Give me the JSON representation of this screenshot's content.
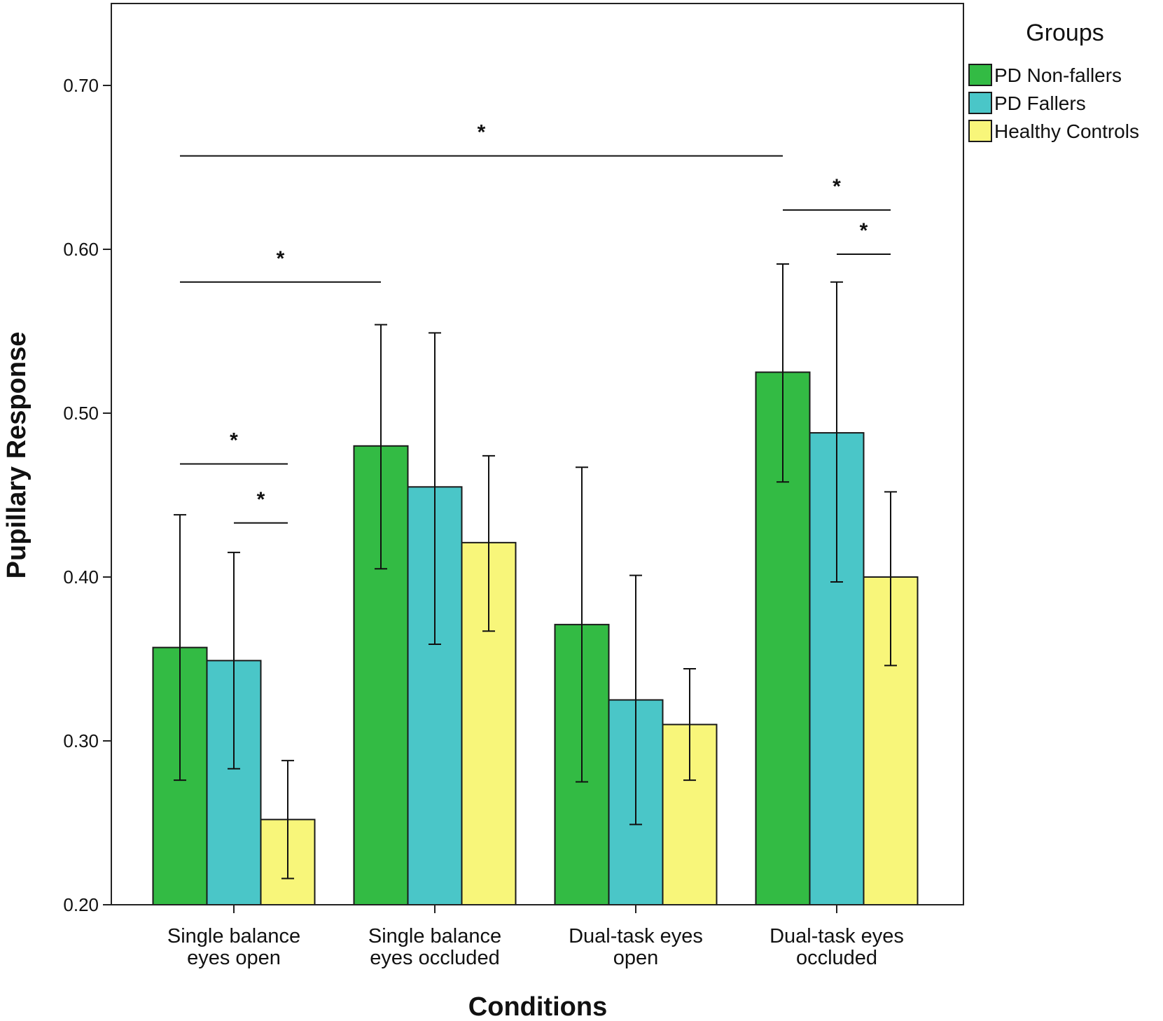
{
  "chart_data": {
    "type": "bar",
    "xlabel": "Conditions",
    "ylabel": "Pupillary Response",
    "ylim": [
      0.2,
      0.75
    ],
    "yticks": [
      "0.20",
      "0.30",
      "0.40",
      "0.50",
      "0.60",
      "0.70"
    ],
    "grid": false,
    "categories": [
      [
        "Single balance",
        "eyes open"
      ],
      [
        "Single balance",
        "eyes occluded"
      ],
      [
        "Dual-task eyes",
        "open"
      ],
      [
        "Dual-task eyes",
        "occluded"
      ]
    ],
    "legend": {
      "title": "Groups",
      "placement": "right-top"
    },
    "series": [
      {
        "name": "PD Non-fallers",
        "color": "#33bb44",
        "values": [
          0.357,
          0.48,
          0.371,
          0.525
        ],
        "ci_low": [
          0.276,
          0.405,
          0.275,
          0.458
        ],
        "ci_high": [
          0.438,
          0.554,
          0.467,
          0.591
        ]
      },
      {
        "name": "PD Fallers",
        "color": "#4ac6c8",
        "values": [
          0.349,
          0.455,
          0.325,
          0.488
        ],
        "ci_low": [
          0.283,
          0.359,
          0.249,
          0.397
        ],
        "ci_high": [
          0.415,
          0.549,
          0.401,
          0.58
        ]
      },
      {
        "name": "Healthy Controls",
        "color": "#f8f67a",
        "values": [
          0.252,
          0.421,
          0.31,
          0.4
        ],
        "ci_low": [
          0.216,
          0.367,
          0.276,
          0.346
        ],
        "ci_high": [
          0.288,
          0.474,
          0.344,
          0.452
        ]
      }
    ],
    "significance": [
      {
        "label": "*",
        "from": [
          0,
          0
        ],
        "to": [
          0,
          2
        ],
        "y": 0.469
      },
      {
        "label": "*",
        "from": [
          0,
          1
        ],
        "to": [
          0,
          2
        ],
        "y": 0.433
      },
      {
        "label": "*",
        "from": [
          0,
          0
        ],
        "to": [
          1,
          0
        ],
        "y": 0.58
      },
      {
        "label": "*",
        "from": [
          0,
          0
        ],
        "to": [
          3,
          0
        ],
        "y": 0.657
      },
      {
        "label": "*",
        "from": [
          3,
          0
        ],
        "to": [
          3,
          2
        ],
        "y": 0.624
      },
      {
        "label": "*",
        "from": [
          3,
          1
        ],
        "to": [
          3,
          2
        ],
        "y": 0.597
      }
    ]
  }
}
